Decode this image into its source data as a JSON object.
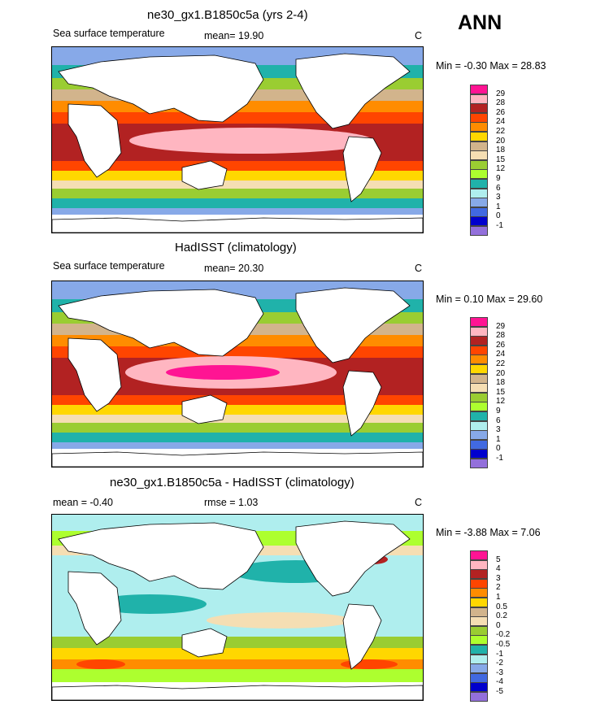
{
  "season": "ANN",
  "panels": [
    {
      "title": "ne30_gx1.B1850c5a (yrs 2-4)",
      "left_label": "Sea surface temperature",
      "mean_text": "mean=  19.90",
      "unit": "C",
      "minmax_text": "Min =  -0.30 Max =  28.83"
    },
    {
      "title": "HadISST (climatology)",
      "left_label": "Sea surface temperature",
      "mean_text": "mean=  20.30",
      "unit": "C",
      "minmax_text": "Min =   0.10 Max =  29.60"
    },
    {
      "title": "ne30_gx1.B1850c5a - HadISST (climatology)",
      "left_label": "mean =  -0.40",
      "mean_text": "rmse =   1.03",
      "unit": "C",
      "minmax_text": "Min =  -3.88 Max =   7.06"
    }
  ],
  "chart_data": [
    {
      "type": "heatmap",
      "title": "ne30_gx1.B1850c5a (yrs 2-4)",
      "variable": "Sea surface temperature",
      "unit": "C",
      "mean": 19.9,
      "min": -0.3,
      "max": 28.83,
      "colorbar_levels": [
        "29",
        "28",
        "26",
        "24",
        "22",
        "20",
        "18",
        "15",
        "12",
        "9",
        "6",
        "3",
        "1",
        "0",
        "-1"
      ],
      "colorbar_colors": [
        "#ff1493",
        "#ffb6c1",
        "#b22222",
        "#ff4500",
        "#ff8c00",
        "#ffd700",
        "#d2b48c",
        "#f5deb3",
        "#9acd32",
        "#adff2f",
        "#20b2aa",
        "#afeeee",
        "#87a9e8",
        "#4169e1",
        "#0000cd",
        "#9370db"
      ]
    },
    {
      "type": "heatmap",
      "title": "HadISST (climatology)",
      "variable": "Sea surface temperature",
      "unit": "C",
      "mean": 20.3,
      "min": 0.1,
      "max": 29.6,
      "colorbar_levels": [
        "29",
        "28",
        "26",
        "24",
        "22",
        "20",
        "18",
        "15",
        "12",
        "9",
        "6",
        "3",
        "1",
        "0",
        "-1"
      ],
      "colorbar_colors": [
        "#ff1493",
        "#ffb6c1",
        "#b22222",
        "#ff4500",
        "#ff8c00",
        "#ffd700",
        "#d2b48c",
        "#f5deb3",
        "#9acd32",
        "#adff2f",
        "#20b2aa",
        "#afeeee",
        "#87a9e8",
        "#4169e1",
        "#0000cd",
        "#9370db"
      ]
    },
    {
      "type": "heatmap",
      "title": "ne30_gx1.B1850c5a - HadISST (climatology)",
      "unit": "C",
      "mean": -0.4,
      "rmse": 1.03,
      "min": -3.88,
      "max": 7.06,
      "colorbar_levels": [
        "5",
        "4",
        "3",
        "2",
        "1",
        "0.5",
        "0.2",
        "0",
        "-0.2",
        "-0.5",
        "-1",
        "-2",
        "-3",
        "-4",
        "-5"
      ],
      "colorbar_colors": [
        "#ff1493",
        "#ffb6c1",
        "#b22222",
        "#ff4500",
        "#ff8c00",
        "#ffd700",
        "#d2b48c",
        "#f5deb3",
        "#9acd32",
        "#adff2f",
        "#20b2aa",
        "#afeeee",
        "#87a9e8",
        "#4169e1",
        "#0000cd",
        "#9370db"
      ]
    }
  ]
}
